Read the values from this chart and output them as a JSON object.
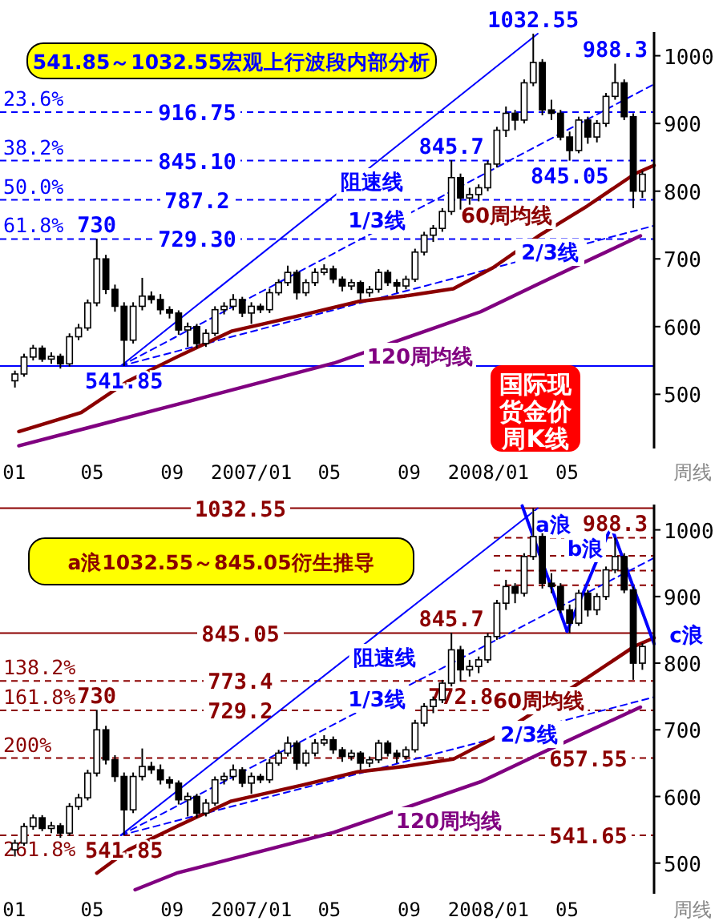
{
  "chart_data": [
    {
      "type": "candlestick",
      "title": "541.85～1032.55宏观上行波段内部分析",
      "xlabel": "周线",
      "x": [
        "2006-01-02",
        "2006-01-16",
        "2006-01-30",
        "2006-02-13",
        "2006-02-27",
        "2006-03-13",
        "2006-03-27",
        "2006-04-10",
        "2006-04-24",
        "2006-05-08",
        "2006-05-22",
        "2006-06-05",
        "2006-06-19",
        "2006-07-03",
        "2006-07-17",
        "2006-07-31",
        "2006-08-14",
        "2006-08-28",
        "2006-09-11",
        "2006-09-25",
        "2006-10-09",
        "2006-10-23",
        "2006-11-06",
        "2006-11-20",
        "2006-12-04",
        "2006-12-18",
        "2007-01-01",
        "2007-01-15",
        "2007-01-29",
        "2007-02-12",
        "2007-02-26",
        "2007-03-12",
        "2007-03-26",
        "2007-04-09",
        "2007-04-23",
        "2007-05-07",
        "2007-05-21",
        "2007-06-04",
        "2007-06-18",
        "2007-07-02",
        "2007-07-16",
        "2007-07-30",
        "2007-08-13",
        "2007-08-27",
        "2007-09-10",
        "2007-09-24",
        "2007-10-08",
        "2007-10-22",
        "2007-11-05",
        "2007-11-19",
        "2007-12-03",
        "2007-12-17",
        "2007-12-31",
        "2008-01-14",
        "2008-01-28",
        "2008-02-11",
        "2008-02-25",
        "2008-03-10",
        "2008-03-24",
        "2008-04-07",
        "2008-04-21",
        "2008-05-05",
        "2008-05-19",
        "2008-06-02",
        "2008-06-16",
        "2008-06-30",
        "2008-07-14",
        "2008-07-28",
        "2008-08-11",
        "2008-08-25"
      ],
      "ohlc": [
        [
          520,
          535,
          510,
          530
        ],
        [
          530,
          560,
          526,
          555
        ],
        [
          555,
          573,
          550,
          568
        ],
        [
          568,
          572,
          548,
          552
        ],
        [
          552,
          562,
          545,
          556
        ],
        [
          556,
          560,
          538,
          545
        ],
        [
          545,
          590,
          541,
          585
        ],
        [
          585,
          604,
          580,
          598
        ],
        [
          598,
          640,
          594,
          635
        ],
        [
          635,
          730,
          630,
          700
        ],
        [
          700,
          706,
          648,
          655
        ],
        [
          655,
          662,
          622,
          630
        ],
        [
          630,
          636,
          541.85,
          580
        ],
        [
          580,
          636,
          575,
          630
        ],
        [
          630,
          672,
          624,
          645
        ],
        [
          645,
          652,
          634,
          640
        ],
        [
          640,
          648,
          618,
          625
        ],
        [
          625,
          630,
          612,
          620
        ],
        [
          620,
          624,
          588,
          595
        ],
        [
          595,
          606,
          570,
          600
        ],
        [
          600,
          604,
          568,
          575
        ],
        [
          575,
          596,
          570,
          590
        ],
        [
          590,
          630,
          586,
          625
        ],
        [
          625,
          636,
          618,
          630
        ],
        [
          630,
          648,
          624,
          640
        ],
        [
          640,
          644,
          614,
          620
        ],
        [
          620,
          636,
          604,
          630
        ],
        [
          630,
          634,
          620,
          625
        ],
        [
          625,
          656,
          620,
          650
        ],
        [
          650,
          670,
          646,
          665
        ],
        [
          665,
          690,
          660,
          680
        ],
        [
          680,
          684,
          640,
          650
        ],
        [
          650,
          670,
          645,
          665
        ],
        [
          665,
          686,
          660,
          680
        ],
        [
          680,
          692,
          676,
          685
        ],
        [
          685,
          690,
          664,
          670
        ],
        [
          670,
          674,
          652,
          660
        ],
        [
          660,
          670,
          654,
          665
        ],
        [
          665,
          668,
          640,
          650
        ],
        [
          650,
          660,
          644,
          655
        ],
        [
          655,
          685,
          650,
          680
        ],
        [
          680,
          684,
          660,
          665
        ],
        [
          665,
          670,
          650,
          660
        ],
        [
          660,
          675,
          655,
          670
        ],
        [
          670,
          715,
          666,
          710
        ],
        [
          710,
          740,
          705,
          735
        ],
        [
          735,
          750,
          725,
          745
        ],
        [
          745,
          775,
          740,
          770
        ],
        [
          770,
          845.7,
          765,
          820
        ],
        [
          820,
          826,
          772.8,
          790
        ],
        [
          790,
          805,
          780,
          795
        ],
        [
          795,
          810,
          785,
          805
        ],
        [
          805,
          845,
          800,
          840
        ],
        [
          840,
          895,
          835,
          890
        ],
        [
          890,
          925,
          880,
          915
        ],
        [
          915,
          920,
          890,
          905
        ],
        [
          905,
          965,
          900,
          960
        ],
        [
          960,
          1032.55,
          955,
          990
        ],
        [
          990,
          995,
          912,
          920
        ],
        [
          920,
          935,
          905,
          915
        ],
        [
          915,
          920,
          875,
          880
        ],
        [
          880,
          888,
          845.05,
          860
        ],
        [
          860,
          910,
          856,
          905
        ],
        [
          905,
          910,
          870,
          880
        ],
        [
          880,
          905,
          872,
          900
        ],
        [
          900,
          945,
          895,
          940
        ],
        [
          940,
          988.3,
          935,
          960
        ],
        [
          960,
          965,
          905,
          910
        ],
        [
          910,
          915,
          775,
          800
        ],
        [
          800,
          830,
          790,
          825
        ]
      ],
      "xlim": [
        "2005-12-10",
        "2008-09-12"
      ],
      "xticks": [
        {
          "value": "2006-01-01",
          "label": "01"
        },
        {
          "value": "2006-05-01",
          "label": "05"
        },
        {
          "value": "2006-09-01",
          "label": "09"
        },
        {
          "value": "2007-01-01",
          "label": "2007/01"
        },
        {
          "value": "2007-05-01",
          "label": "05"
        },
        {
          "value": "2007-09-01",
          "label": "09"
        },
        {
          "value": "2008-01-01",
          "label": "2008/01"
        },
        {
          "value": "2008-05-01",
          "label": "05"
        }
      ],
      "ylim": [
        420,
        1035
      ],
      "yticks": [
        500,
        600,
        700,
        800,
        900,
        1000
      ],
      "series": [
        {
          "type": "line",
          "name": "阻速线",
          "color": "#0000ff",
          "line_style": "solid",
          "x": [
            "2006-06-14",
            "2008-03-17"
          ],
          "values": [
            541.85,
            1032.55
          ]
        },
        {
          "type": "line",
          "name": "1/3线",
          "color": "#0000ff",
          "line_style": "dashed",
          "x": [
            "2006-06-14",
            "2008-09-12"
          ],
          "values": [
            541.85,
            958
          ]
        },
        {
          "type": "line",
          "name": "2/3线",
          "color": "#0000ff",
          "line_style": "dashed",
          "x": [
            "2006-06-14",
            "2008-09-12"
          ],
          "values": [
            541.85,
            749
          ]
        },
        {
          "type": "line",
          "name": "60周均线",
          "color": "#8b0000",
          "line_style": "solid",
          "x": [
            "2006-01-08",
            "2006-04-14",
            "2006-06-26",
            "2006-09-08",
            "2006-12-01",
            "2007-03-20",
            "2007-06-14",
            "2007-08-24",
            "2007-11-08",
            "2008-01-08",
            "2008-03-20",
            "2008-06-01",
            "2008-08-14",
            "2008-09-12"
          ],
          "values": [
            445,
            473,
            520,
            555,
            593,
            617,
            637,
            645,
            656,
            687,
            735,
            778,
            826,
            838
          ]
        },
        {
          "type": "line",
          "name": "120周均线",
          "color": "#800080",
          "line_style": "solid",
          "x": [
            "2006-01-08",
            "2006-05-08",
            "2006-09-08",
            "2007-05-08",
            "2007-12-20",
            "2008-03-20",
            "2008-06-01",
            "2008-08-22"
          ],
          "values": [
            424,
            454,
            485,
            546,
            622,
            664,
            697,
            734
          ]
        }
      ],
      "ref_lines": [
        {
          "axis": "y",
          "value": 916.75,
          "label": "916.75",
          "color": "#0000ff",
          "line_style": "dashed"
        },
        {
          "axis": "y",
          "value": 845.1,
          "label": "845.10",
          "color": "#0000ff",
          "line_style": "dashed"
        },
        {
          "axis": "y",
          "value": 787.2,
          "label": "787.2",
          "color": "#0000ff",
          "line_style": "dashed"
        },
        {
          "axis": "y",
          "value": 729.3,
          "label": "729.30",
          "color": "#0000ff",
          "line_style": "dashed"
        },
        {
          "axis": "y",
          "value": 541.85,
          "label": null,
          "color": "#0000ff",
          "line_style": "solid"
        }
      ],
      "annotations": [
        {
          "text": "1032.55",
          "x": "2008-03-10",
          "y": 1032.55
        },
        {
          "text": "988.3",
          "x": "2008-07-14",
          "y": 988.3
        },
        {
          "text": "845.7",
          "x": "2007-11-05",
          "y": 845.7
        },
        {
          "text": "845.05",
          "x": "2008-05-05",
          "y": 845.05
        },
        {
          "text": "730",
          "x": "2006-05-08",
          "y": 730
        },
        {
          "text": "541.85",
          "x": "2006-06-19",
          "y": 541.85
        },
        {
          "text": "23.6%",
          "y": 916.75
        },
        {
          "text": "38.2%",
          "y": 845.1
        },
        {
          "text": "50.0%",
          "y": 787.2
        },
        {
          "text": "61.8%",
          "y": 729.3
        },
        "国际现货金价周K线"
      ]
    },
    {
      "type": "candlestick",
      "title": "a浪1032.55～845.05衍生推导",
      "xlabel": "周线",
      "x": [
        "2006-01-02",
        "2006-01-16",
        "2006-01-30",
        "2006-02-13",
        "2006-02-27",
        "2006-03-13",
        "2006-03-27",
        "2006-04-10",
        "2006-04-24",
        "2006-05-08",
        "2006-05-22",
        "2006-06-05",
        "2006-06-19",
        "2006-07-03",
        "2006-07-17",
        "2006-07-31",
        "2006-08-14",
        "2006-08-28",
        "2006-09-11",
        "2006-09-25",
        "2006-10-09",
        "2006-10-23",
        "2006-11-06",
        "2006-11-20",
        "2006-12-04",
        "2006-12-18",
        "2007-01-01",
        "2007-01-15",
        "2007-01-29",
        "2007-02-12",
        "2007-02-26",
        "2007-03-12",
        "2007-03-26",
        "2007-04-09",
        "2007-04-23",
        "2007-05-07",
        "2007-05-21",
        "2007-06-04",
        "2007-06-18",
        "2007-07-02",
        "2007-07-16",
        "2007-07-30",
        "2007-08-13",
        "2007-08-27",
        "2007-09-10",
        "2007-09-24",
        "2007-10-08",
        "2007-10-22",
        "2007-11-05",
        "2007-11-19",
        "2007-12-03",
        "2007-12-17",
        "2007-12-31",
        "2008-01-14",
        "2008-01-28",
        "2008-02-11",
        "2008-02-25",
        "2008-03-10",
        "2008-03-24",
        "2008-04-07",
        "2008-04-21",
        "2008-05-05",
        "2008-05-19",
        "2008-06-02",
        "2008-06-16",
        "2008-06-30",
        "2008-07-14",
        "2008-07-28",
        "2008-08-11",
        "2008-08-25"
      ],
      "ohlc": [
        [
          520,
          535,
          510,
          530
        ],
        [
          530,
          560,
          526,
          555
        ],
        [
          555,
          573,
          550,
          568
        ],
        [
          568,
          572,
          548,
          552
        ],
        [
          552,
          562,
          545,
          556
        ],
        [
          556,
          560,
          538,
          545
        ],
        [
          545,
          590,
          541,
          585
        ],
        [
          585,
          604,
          580,
          598
        ],
        [
          598,
          640,
          594,
          635
        ],
        [
          635,
          730,
          630,
          700
        ],
        [
          700,
          706,
          648,
          655
        ],
        [
          655,
          662,
          622,
          630
        ],
        [
          630,
          636,
          541.85,
          580
        ],
        [
          580,
          636,
          575,
          630
        ],
        [
          630,
          672,
          624,
          645
        ],
        [
          645,
          652,
          634,
          640
        ],
        [
          640,
          648,
          618,
          625
        ],
        [
          625,
          630,
          612,
          620
        ],
        [
          620,
          624,
          588,
          595
        ],
        [
          595,
          606,
          570,
          600
        ],
        [
          600,
          604,
          568,
          575
        ],
        [
          575,
          596,
          570,
          590
        ],
        [
          590,
          630,
          586,
          625
        ],
        [
          625,
          636,
          618,
          630
        ],
        [
          630,
          648,
          624,
          640
        ],
        [
          640,
          644,
          614,
          620
        ],
        [
          620,
          636,
          604,
          630
        ],
        [
          630,
          634,
          620,
          625
        ],
        [
          625,
          656,
          620,
          650
        ],
        [
          650,
          670,
          646,
          665
        ],
        [
          665,
          690,
          660,
          680
        ],
        [
          680,
          684,
          640,
          650
        ],
        [
          650,
          670,
          645,
          665
        ],
        [
          665,
          686,
          660,
          680
        ],
        [
          680,
          692,
          676,
          685
        ],
        [
          685,
          690,
          664,
          670
        ],
        [
          670,
          674,
          652,
          660
        ],
        [
          660,
          670,
          654,
          665
        ],
        [
          665,
          668,
          640,
          650
        ],
        [
          650,
          660,
          644,
          655
        ],
        [
          655,
          685,
          650,
          680
        ],
        [
          680,
          684,
          660,
          665
        ],
        [
          665,
          670,
          650,
          660
        ],
        [
          660,
          675,
          655,
          670
        ],
        [
          670,
          715,
          666,
          710
        ],
        [
          710,
          740,
          705,
          735
        ],
        [
          735,
          750,
          725,
          745
        ],
        [
          745,
          775,
          740,
          770
        ],
        [
          770,
          845.7,
          765,
          820
        ],
        [
          820,
          826,
          772.8,
          790
        ],
        [
          790,
          805,
          780,
          795
        ],
        [
          795,
          810,
          785,
          805
        ],
        [
          805,
          845,
          800,
          840
        ],
        [
          840,
          895,
          835,
          890
        ],
        [
          890,
          925,
          880,
          915
        ],
        [
          915,
          920,
          890,
          905
        ],
        [
          905,
          965,
          900,
          960
        ],
        [
          960,
          1032.55,
          955,
          990
        ],
        [
          990,
          995,
          912,
          920
        ],
        [
          920,
          935,
          905,
          915
        ],
        [
          915,
          920,
          875,
          880
        ],
        [
          880,
          888,
          845.05,
          860
        ],
        [
          860,
          910,
          856,
          905
        ],
        [
          905,
          910,
          870,
          880
        ],
        [
          880,
          905,
          872,
          900
        ],
        [
          900,
          945,
          895,
          940
        ],
        [
          940,
          988.3,
          935,
          960
        ],
        [
          960,
          965,
          905,
          910
        ],
        [
          910,
          915,
          775,
          800
        ],
        [
          800,
          830,
          790,
          825
        ]
      ],
      "xlim": [
        "2005-12-10",
        "2008-09-12"
      ],
      "xticks": [
        {
          "value": "2006-01-01",
          "label": "01"
        },
        {
          "value": "2006-05-01",
          "label": "05"
        },
        {
          "value": "2006-09-01",
          "label": "09"
        },
        {
          "value": "2007-01-01",
          "label": "2007/01"
        },
        {
          "value": "2007-05-01",
          "label": "05"
        },
        {
          "value": "2007-09-01",
          "label": "09"
        },
        {
          "value": "2008-01-01",
          "label": "2008/01"
        },
        {
          "value": "2008-05-01",
          "label": "05"
        }
      ],
      "ylim": [
        454,
        1038
      ],
      "yticks": [
        500,
        600,
        700,
        800,
        900,
        1000
      ],
      "series": [
        {
          "type": "line",
          "name": "阻速线",
          "color": "#0000ff",
          "line_style": "solid",
          "x": [
            "2006-06-14",
            "2008-03-17"
          ],
          "values": [
            541.85,
            1032.55
          ]
        },
        {
          "type": "line",
          "name": "1/3线",
          "color": "#0000ff",
          "line_style": "dashed",
          "x": [
            "2006-06-14",
            "2008-09-12"
          ],
          "values": [
            541.85,
            958
          ]
        },
        {
          "type": "line",
          "name": "2/3线",
          "color": "#0000ff",
          "line_style": "dashed",
          "x": [
            "2006-06-14",
            "2008-09-12"
          ],
          "values": [
            541.85,
            749
          ]
        },
        {
          "type": "line",
          "name": "60周均线",
          "color": "#8b0000",
          "line_style": "solid",
          "x": [
            "2006-05-08",
            "2006-06-26",
            "2006-09-08",
            "2006-12-01",
            "2007-03-20",
            "2007-06-14",
            "2007-08-24",
            "2007-11-08",
            "2008-01-08",
            "2008-06-01",
            "2008-08-14",
            "2008-09-12"
          ],
          "values": [
            485,
            520,
            555,
            593,
            617,
            637,
            645,
            656,
            687,
            778,
            826,
            838
          ]
        },
        {
          "type": "line",
          "name": "120周均线",
          "color": "#800080",
          "line_style": "solid",
          "x": [
            "2006-07-06",
            "2006-09-08",
            "2007-05-08",
            "2007-12-20",
            "2008-03-20",
            "2008-06-01",
            "2008-08-22"
          ],
          "values": [
            460,
            485,
            546,
            622,
            664,
            697,
            734
          ]
        },
        {
          "type": "line",
          "name": "a浪",
          "color": "#0000ff",
          "line_style": "solid",
          "x": [
            "2008-02-22",
            "2008-05-01"
          ],
          "values": [
            1036,
            848
          ]
        },
        {
          "type": "line",
          "name": "b浪",
          "color": "#0000ff",
          "line_style": "solid",
          "x": [
            "2008-05-01",
            "2008-07-08"
          ],
          "values": [
            848,
            1005
          ]
        },
        {
          "type": "line",
          "name": "c浪",
          "color": "#0000ff",
          "line_style": "solid",
          "x": [
            "2008-07-08",
            "2008-09-12"
          ],
          "values": [
            1005,
            829
          ]
        }
      ],
      "ref_lines": [
        {
          "axis": "y",
          "value": 1032.55,
          "label": "1032.55",
          "color": "#8b0000",
          "line_style": "solid"
        },
        {
          "axis": "y",
          "value": 988,
          "label": null,
          "color": "#8b0000",
          "line_style": "dashed"
        },
        {
          "axis": "y",
          "value": 961,
          "label": null,
          "color": "#8b0000",
          "line_style": "dashed"
        },
        {
          "axis": "y",
          "value": 939,
          "label": null,
          "color": "#8b0000",
          "line_style": "dashed"
        },
        {
          "axis": "y",
          "value": 917,
          "label": null,
          "color": "#8b0000",
          "line_style": "dashed"
        },
        {
          "axis": "y",
          "value": 845.05,
          "label": "845.05",
          "color": "#8b0000",
          "line_style": "solid"
        },
        {
          "axis": "y",
          "value": 773.4,
          "label": "773.4",
          "color": "#8b0000",
          "line_style": "dashed"
        },
        {
          "axis": "y",
          "value": 729.2,
          "label": "729.2",
          "color": "#8b0000",
          "line_style": "dashed"
        },
        {
          "axis": "y",
          "value": 657.55,
          "label": "657.55",
          "color": "#8b0000",
          "line_style": "dashed"
        },
        {
          "axis": "y",
          "value": 541.65,
          "label": "541.65",
          "color": "#8b0000",
          "line_style": "dashed"
        }
      ],
      "annotations": [
        {
          "text": "988.3",
          "x": "2008-07-14",
          "y": 988.3
        },
        {
          "text": "845.7",
          "x": "2007-11-05",
          "y": 845.7
        },
        {
          "text": "772.8",
          "x": "2007-11-19",
          "y": 772.8
        },
        {
          "text": "730",
          "x": "2006-05-08",
          "y": 730
        },
        {
          "text": "541.85",
          "x": "2006-06-19",
          "y": 541.85
        },
        {
          "text": "138.2%",
          "y": 773.4
        },
        {
          "text": "161.8%",
          "y": 729.2
        },
        {
          "text": "200%",
          "y": 657.55
        },
        {
          "text": "261.8%",
          "y": 541.65
        }
      ]
    }
  ]
}
